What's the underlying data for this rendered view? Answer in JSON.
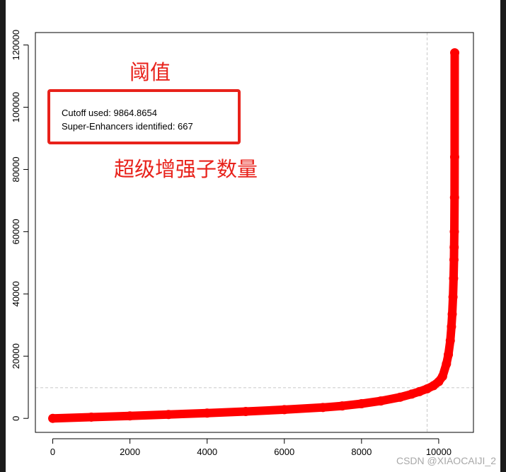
{
  "chart_data": {
    "type": "scatter",
    "title": "",
    "xlabel": "",
    "ylabel": "",
    "xlim": [
      -450,
      10900
    ],
    "ylim": [
      -4500,
      124000
    ],
    "x_ticks": [
      0,
      2000,
      4000,
      6000,
      8000,
      10000
    ],
    "x_tick_labels": [
      "0",
      "2000",
      "4000",
      "6000",
      "8000",
      "10000"
    ],
    "y_ticks": [
      0,
      20000,
      40000,
      60000,
      80000,
      100000,
      120000
    ],
    "y_tick_labels": [
      "0",
      "20000",
      "40000",
      "60000",
      "80000",
      "100000",
      "120000"
    ],
    "series": [
      {
        "color": "#ff0000",
        "x": [
          0,
          1000,
          2000,
          3000,
          4000,
          5000,
          6000,
          7000,
          7500,
          8000,
          8500,
          9000,
          9300,
          9500,
          9700,
          9864,
          10000,
          10100,
          10200,
          10250,
          10300,
          10330,
          10350,
          10370,
          10385,
          10395,
          10400,
          10405,
          10410,
          10413,
          10415
        ],
        "y": [
          0,
          400,
          800,
          1250,
          1700,
          2200,
          2800,
          3500,
          4000,
          4700,
          5600,
          6800,
          7800,
          8600,
          9500,
          10500,
          11800,
          13500,
          17500,
          20500,
          25000,
          29500,
          33500,
          39000,
          45000,
          51000,
          55000,
          60000,
          71000,
          84000,
          117500
        ]
      }
    ],
    "reference_lines": [
      {
        "axis": "x",
        "value": 9700,
        "color": "#c8c8c8",
        "style": "dashed"
      },
      {
        "axis": "y",
        "value": 9864.8654,
        "color": "#c8c8c8",
        "style": "dashed"
      }
    ],
    "grid": false,
    "annotations": {
      "cutoff_text": "Cutoff used:  9864.8654",
      "superenhancers_text": "Super-Enhancers identified:  667",
      "threshold_label": "阈值",
      "count_label": "超级增强子数量",
      "highlight_color": "#e8221b"
    }
  },
  "watermark": "CSDN @XIAOCAIJI_2"
}
